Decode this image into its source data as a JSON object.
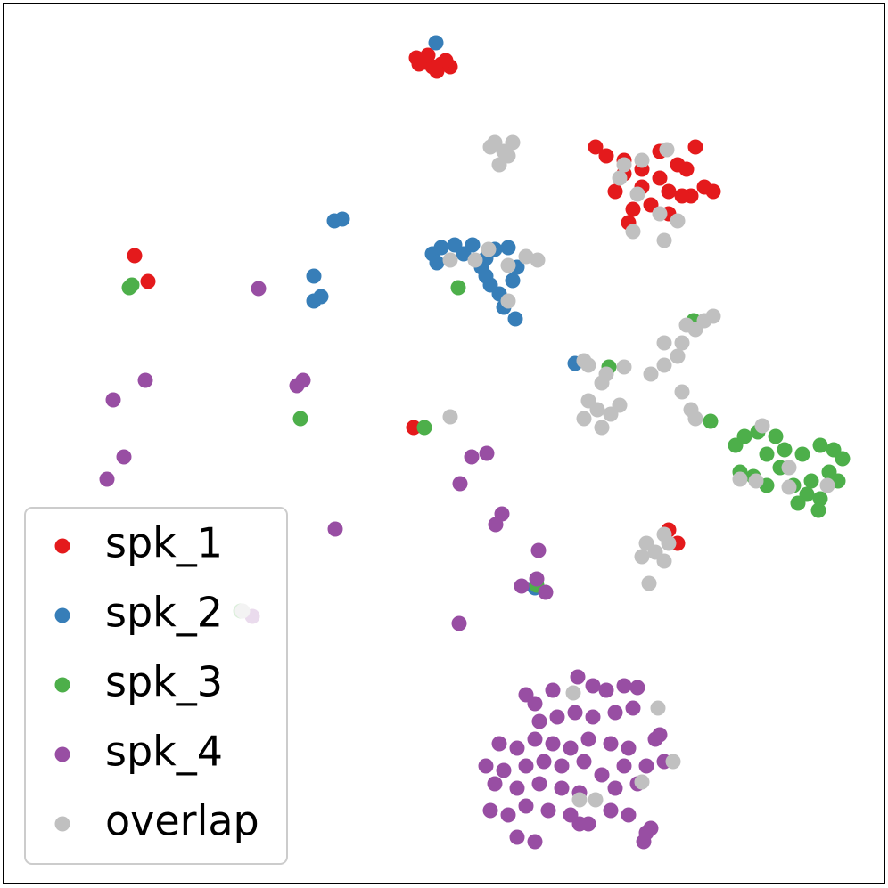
{
  "chart_data": {
    "type": "scatter",
    "xlim": [
      4,
      992
    ],
    "ylim": [
      992,
      4
    ],
    "legend": "lower left",
    "series": [
      {
        "name": "spk_1",
        "color": "#e41a1c",
        "x": [
          467,
          475,
          485,
          495,
          505,
          480,
          490,
          500,
          470,
          668,
          680,
          700,
          720,
          740,
          760,
          780,
          790,
          800,
          775,
          750,
          720,
          700,
          690,
          710,
          730,
          750,
          765,
          705,
          740,
          770,
          151,
          166,
          464,
          760,
          750
        ],
        "y": [
          65,
          70,
          75,
          72,
          75,
          62,
          80,
          68,
          72,
          165,
          175,
          180,
          190,
          200,
          185,
          165,
          210,
          215,
          220,
          215,
          210,
          195,
          215,
          235,
          230,
          240,
          220,
          250,
          170,
          190,
          287,
          316,
          480,
          610,
          595
        ]
      },
      {
        "name": "spk_2",
        "color": "#377eb8",
        "x": [
          489,
          375,
          384,
          352,
          352,
          360,
          485,
          495,
          510,
          520,
          530,
          545,
          555,
          570,
          540,
          550,
          560,
          575,
          580,
          545,
          565,
          578,
          490,
          645,
          600
        ],
        "y": [
          48,
          248,
          246,
          310,
          338,
          333,
          285,
          278,
          275,
          285,
          275,
          290,
          280,
          278,
          300,
          320,
          330,
          315,
          300,
          310,
          345,
          358,
          295,
          408,
          660
        ]
      },
      {
        "name": "spk_3",
        "color": "#4daf4a",
        "x": [
          145,
          148,
          514,
          337,
          476,
          778,
          683,
          797,
          602,
          825,
          835,
          850,
          870,
          860,
          880,
          900,
          920,
          935,
          945,
          930,
          910,
          890,
          905,
          920,
          940,
          895,
          918,
          830,
          845,
          875,
          860,
          270
        ],
        "y": [
          323,
          320,
          323,
          470,
          480,
          360,
          412,
          473,
          657,
          500,
          490,
          485,
          490,
          510,
          505,
          510,
          500,
          505,
          515,
          530,
          540,
          545,
          555,
          560,
          540,
          565,
          573,
          530,
          535,
          525,
          545,
          686
        ]
      },
      {
        "name": "spk_4",
        "color": "#984ea3",
        "x": [
          290,
          163,
          127,
          333,
          340,
          139,
          120,
          529,
          546,
          516,
          563,
          556,
          376,
          604,
          602,
          585,
          612,
          515,
          283,
          590,
          600,
          620,
          648,
          665,
          680,
          700,
          715,
          605,
          625,
          645,
          665,
          690,
          710,
          560,
          580,
          600,
          620,
          640,
          660,
          685,
          705,
          735,
          740,
          545,
          565,
          590,
          610,
          630,
          655,
          675,
          700,
          725,
          745,
          555,
          580,
          605,
          630,
          650,
          690,
          715,
          550,
          570,
          590,
          615,
          640,
          660,
          685,
          705,
          580,
          600,
          650,
          725,
          730,
          722
        ],
        "y": [
          324,
          427,
          449,
          433,
          427,
          513,
          538,
          513,
          509,
          543,
          577,
          589,
          594,
          618,
          650,
          658,
          665,
          700,
          692,
          780,
          790,
          775,
          760,
          770,
          775,
          770,
          772,
          810,
          805,
          800,
          805,
          800,
          795,
          835,
          840,
          830,
          835,
          840,
          830,
          835,
          840,
          830,
          825,
          860,
          865,
          860,
          855,
          860,
          855,
          870,
          860,
          860,
          855,
          880,
          885,
          880,
          885,
          890,
          885,
          880,
          910,
          915,
          905,
          910,
          915,
          925,
          910,
          915,
          940,
          945,
          925,
          935,
          930,
          945
        ]
      },
      {
        "name": "overlap",
        "color": "#c0c0c0",
        "x": [
          555,
          565,
          575,
          560,
          570,
          550,
          700,
          720,
          748,
          695,
          715,
          740,
          760,
          745,
          710,
          505,
          533,
          548,
          570,
          590,
          603,
          570,
          655,
          660,
          675,
          680,
          700,
          660,
          670,
          685,
          695,
          655,
          675,
          730,
          745,
          760,
          765,
          780,
          790,
          800,
          770,
          745,
          765,
          775,
          780,
          505,
          830,
          848,
          855,
          885,
          885,
          928,
          725,
          735,
          745,
          720,
          745,
          728,
          750,
          643,
          738,
          755,
          720,
          650,
          668,
          272
        ],
        "y": [
          160,
          170,
          160,
          185,
          175,
          165,
          185,
          180,
          168,
          200,
          218,
          240,
          248,
          270,
          260,
          292,
          292,
          280,
          298,
          288,
          292,
          338,
          405,
          410,
          430,
          420,
          412,
          450,
          460,
          465,
          455,
          470,
          480,
          420,
          410,
          400,
          385,
          370,
          360,
          355,
          365,
          385,
          440,
          460,
          470,
          468,
          538,
          540,
          478,
          525,
          547,
          545,
          610,
          620,
          600,
          625,
          630,
          655,
          610,
          778,
          795,
          855,
          878,
          898,
          898,
          686
        ]
      }
    ]
  }
}
